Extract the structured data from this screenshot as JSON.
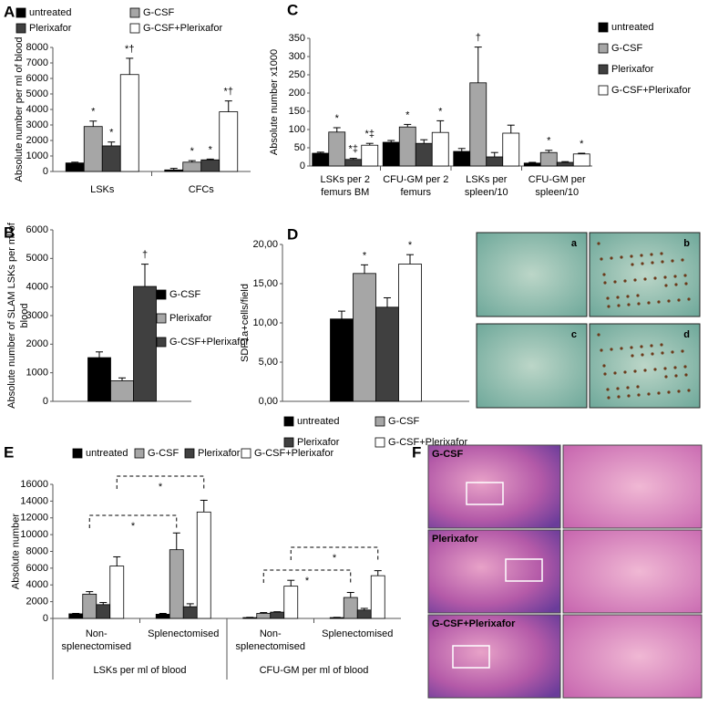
{
  "chart_data": [
    {
      "type": "bar",
      "label": "A",
      "ylabel": "Absolute number per ml of blood",
      "categories": [
        "LSKs",
        "CFCs"
      ],
      "ylim": [
        0,
        8000
      ],
      "yticks": [
        0,
        1000,
        2000,
        3000,
        4000,
        5000,
        6000,
        7000,
        8000
      ],
      "series": [
        {
          "name": "untreated",
          "color": "#000000",
          "values": [
            550,
            100
          ],
          "errors": [
            50,
            100
          ],
          "annotations": [
            null,
            null
          ]
        },
        {
          "name": "G-CSF",
          "color": "#a6a6a6",
          "values": [
            2900,
            600
          ],
          "errors": [
            350,
            100
          ],
          "annotations": [
            "*",
            "*"
          ]
        },
        {
          "name": "Plerixafor",
          "color": "#404040",
          "values": [
            1650,
            750
          ],
          "errors": [
            250,
            50
          ],
          "annotations": [
            "*",
            "*"
          ]
        },
        {
          "name": "G-CSF+Plerixafor",
          "color": "#ffffff",
          "values": [
            6250,
            3850
          ],
          "errors": [
            1050,
            700
          ],
          "annotations": [
            "*†",
            "*†"
          ]
        }
      ]
    },
    {
      "type": "bar",
      "label": "B",
      "ylabel": "Absolute number of SLAM LSKs per ml of blood",
      "categories": [
        null
      ],
      "ylim": [
        0,
        6000
      ],
      "yticks": [
        0,
        1000,
        2000,
        3000,
        4000,
        5000,
        6000
      ],
      "series": [
        {
          "name": "G-CSF",
          "color": "#000000",
          "values": [
            1530
          ],
          "errors": [
            200
          ],
          "annotations": [
            null
          ]
        },
        {
          "name": "Plerixafor",
          "color": "#a6a6a6",
          "values": [
            720
          ],
          "errors": [
            100
          ],
          "annotations": [
            null
          ]
        },
        {
          "name": "G-CSF+Plerixafor",
          "color": "#404040",
          "values": [
            4020
          ],
          "errors": [
            780
          ],
          "annotations": [
            "†"
          ]
        }
      ]
    },
    {
      "type": "bar",
      "label": "C",
      "ylabel": "Absolute number x1000",
      "categories": [
        "LSKs per 2 femurs BM",
        "CFU-GM per 2 femurs",
        "LSKs per spleen/10",
        "CFU-GM per spleen/10"
      ],
      "ylim": [
        0,
        350
      ],
      "yticks": [
        0,
        50,
        100,
        150,
        200,
        250,
        300,
        350
      ],
      "series": [
        {
          "name": "untreated",
          "color": "#000000",
          "values": [
            35,
            65,
            40,
            8
          ],
          "errors": [
            3,
            5,
            8,
            2
          ],
          "annotations": [
            null,
            null,
            null,
            null
          ]
        },
        {
          "name": "G-CSF",
          "color": "#a6a6a6",
          "values": [
            93,
            107,
            228,
            37
          ],
          "errors": [
            12,
            7,
            98,
            6
          ],
          "annotations": [
            "*",
            "*",
            "†",
            "*"
          ]
        },
        {
          "name": "Plerixafor",
          "color": "#404040",
          "values": [
            18,
            62,
            25,
            10
          ],
          "errors": [
            3,
            10,
            12,
            2
          ],
          "annotations": [
            "*‡",
            null,
            null,
            null
          ]
        },
        {
          "name": "G-CSF+Plerixafor",
          "color": "#ffffff",
          "values": [
            57,
            92,
            90,
            33
          ],
          "errors": [
            5,
            32,
            22,
            2
          ],
          "annotations": [
            "*‡",
            "*",
            null,
            "*"
          ]
        }
      ]
    },
    {
      "type": "bar",
      "label": "D",
      "ylabel": "SDF1a+cells/field",
      "categories": [
        null
      ],
      "ylim": [
        0,
        20
      ],
      "yticks": [
        {
          "value": 0,
          "label": "0,00"
        },
        {
          "value": 5,
          "label": "5,00"
        },
        {
          "value": 10,
          "label": "10,00"
        },
        {
          "value": 15,
          "label": "15,00"
        },
        {
          "value": 20,
          "label": "20,00"
        }
      ],
      "series": [
        {
          "name": "untreated",
          "color": "#000000",
          "values": [
            10.5
          ],
          "errors": [
            1.0
          ],
          "annotations": [
            null
          ]
        },
        {
          "name": "G-CSF",
          "color": "#a6a6a6",
          "values": [
            16.3
          ],
          "errors": [
            1.1
          ],
          "annotations": [
            "*"
          ]
        },
        {
          "name": "Plerixafor",
          "color": "#404040",
          "values": [
            12.0
          ],
          "errors": [
            1.2
          ],
          "annotations": [
            null
          ]
        },
        {
          "name": "G-CSF+Plerixafor",
          "color": "#ffffff",
          "values": [
            17.5
          ],
          "errors": [
            1.2
          ],
          "annotations": [
            "*"
          ]
        }
      ],
      "micrographs": [
        "a",
        "b",
        "c",
        "d"
      ]
    },
    {
      "type": "bar",
      "label": "E",
      "ylabel": "Absolute number",
      "categories": [
        "Non-splenectomised",
        "Splenectomised",
        "Non-splenectomised",
        "Splenectomised"
      ],
      "groups": [
        "LSKs per ml of blood",
        "CFU-GM per ml of blood"
      ],
      "ylim": [
        0,
        16000
      ],
      "yticks": [
        0,
        2000,
        4000,
        6000,
        8000,
        10000,
        12000,
        14000,
        16000
      ],
      "series": [
        {
          "name": "untreated",
          "color": "#000000",
          "values": [
            550,
            500,
            100,
            100
          ],
          "errors": [
            50,
            100,
            30,
            30
          ],
          "annotations": [
            null,
            null,
            null,
            null
          ]
        },
        {
          "name": "G-CSF",
          "color": "#a6a6a6",
          "values": [
            2900,
            8200,
            600,
            2500
          ],
          "errors": [
            300,
            2000,
            100,
            600
          ],
          "annotations": [
            null,
            null,
            null,
            null
          ]
        },
        {
          "name": "Plerixafor",
          "color": "#404040",
          "values": [
            1650,
            1400,
            750,
            1000
          ],
          "errors": [
            250,
            350,
            50,
            200
          ],
          "annotations": [
            null,
            null,
            null,
            null
          ]
        },
        {
          "name": "G-CSF+Plerixafor",
          "color": "#ffffff",
          "values": [
            6250,
            12700,
            3850,
            5100
          ],
          "errors": [
            1100,
            1400,
            700,
            600
          ],
          "annotations": [
            null,
            null,
            null,
            null
          ]
        }
      ],
      "comparisons": [
        "*",
        "*",
        "*",
        "*"
      ]
    }
  ],
  "histology": {
    "label": "F",
    "images": [
      "G-CSF",
      "Plerixafor",
      "G-CSF+Plerixafor"
    ]
  }
}
